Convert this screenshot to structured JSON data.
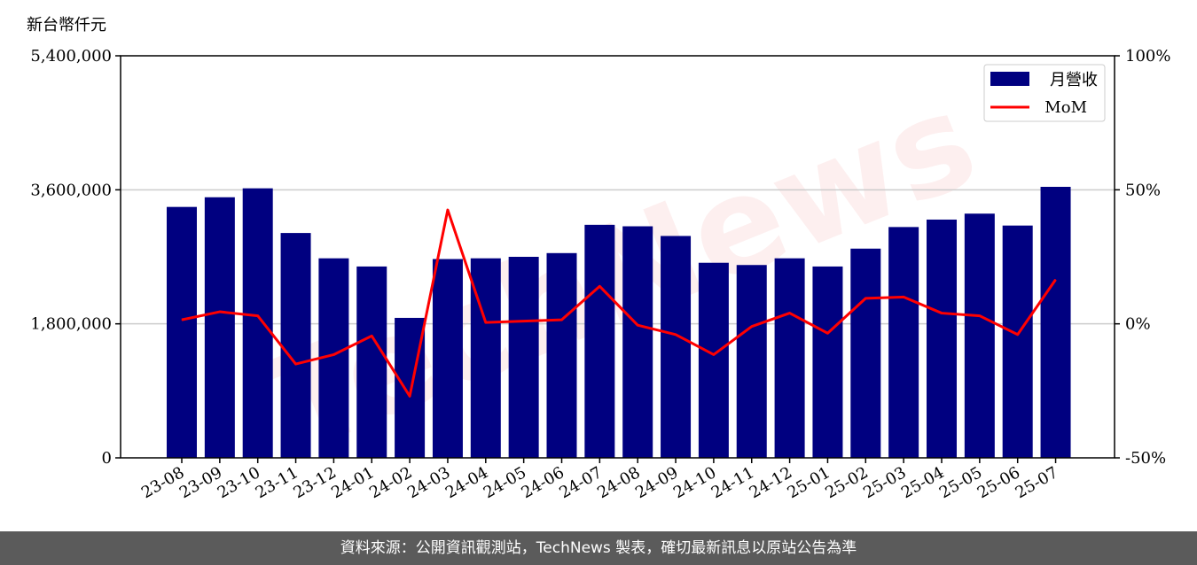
{
  "unit_label": "新台幣仟元",
  "footer_text": "資料來源：公開資訊觀測站，TechNews 製表，確切最新訊息以原站公告為準",
  "watermark": "TechNews",
  "colors": {
    "bar": "#000080",
    "line": "#ff0000",
    "grid": "#cccccc",
    "footer_bg": "#5b5b5b"
  },
  "chart_data": {
    "type": "bar",
    "categories": [
      "23-08",
      "23-09",
      "23-10",
      "23-11",
      "23-12",
      "24-01",
      "24-02",
      "24-03",
      "24-04",
      "24-05",
      "24-06",
      "24-07",
      "24-08",
      "24-09",
      "24-10",
      "24-11",
      "24-12",
      "25-01",
      "25-02",
      "25-03",
      "25-04",
      "25-05",
      "25-06",
      "25-07"
    ],
    "series": [
      {
        "name": "月營收",
        "axis": "left",
        "type": "bar",
        "values": [
          3370000,
          3500000,
          3620000,
          3020000,
          2680000,
          2570000,
          1880000,
          2670000,
          2680000,
          2700000,
          2750000,
          3130000,
          3110000,
          2980000,
          2620000,
          2590000,
          2680000,
          2570000,
          2810000,
          3100000,
          3200000,
          3280000,
          3120000,
          3640000
        ]
      },
      {
        "name": "MoM",
        "axis": "right",
        "type": "line",
        "values": [
          1.5,
          4.5,
          3.0,
          -15.0,
          -11.5,
          -4.5,
          -27.0,
          42.5,
          0.5,
          1.0,
          1.5,
          14.0,
          -0.5,
          -4.0,
          -11.5,
          -1.0,
          4.0,
          -3.5,
          9.5,
          10.0,
          4.0,
          3.0,
          -4.0,
          16.5
        ]
      }
    ],
    "y_left": {
      "ylim": [
        0,
        5400000
      ],
      "ticks": [
        0,
        1800000,
        3600000,
        5400000
      ],
      "tick_labels": [
        "0",
        "1,800,000",
        "3,600,000",
        "5,400,000"
      ]
    },
    "y_right": {
      "ylim": [
        -50,
        100
      ],
      "ticks": [
        -50,
        0,
        50,
        100
      ],
      "tick_labels": [
        "-50%",
        "0%",
        "50%",
        "100%"
      ]
    },
    "grid": "horizontal",
    "legend": {
      "position": "top-right",
      "entries": [
        "月營收",
        "MoM"
      ]
    }
  }
}
